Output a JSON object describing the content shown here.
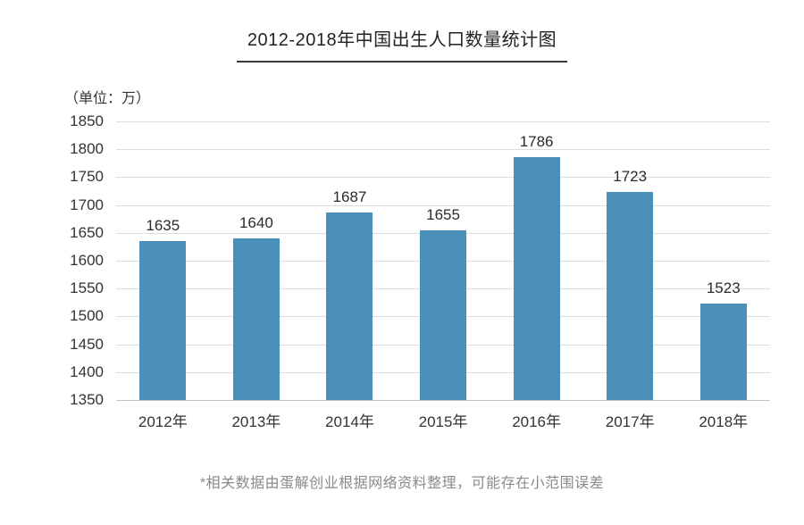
{
  "title": "2012-2018年中国出生人口数量统计图",
  "unit_label": "（单位：万）",
  "footnote": "*相关数据由蛋解创业根据网络资料整理，可能存在小范围误差",
  "chart_data": {
    "type": "bar",
    "title": "2012-2018年中国出生人口数量统计图",
    "categories": [
      "2012年",
      "2013年",
      "2014年",
      "2015年",
      "2016年",
      "2017年",
      "2018年"
    ],
    "values": [
      1635,
      1640,
      1687,
      1655,
      1786,
      1723,
      1523
    ],
    "xlabel": "",
    "ylabel": "（单位：万）",
    "ylim": [
      1350,
      1850
    ],
    "ytick_step": 50,
    "yticks": [
      1850,
      1800,
      1750,
      1700,
      1650,
      1600,
      1550,
      1500,
      1450,
      1400,
      1350
    ],
    "bar_color": "#4a90b9",
    "grid": true,
    "legend": false,
    "value_labels": true
  }
}
